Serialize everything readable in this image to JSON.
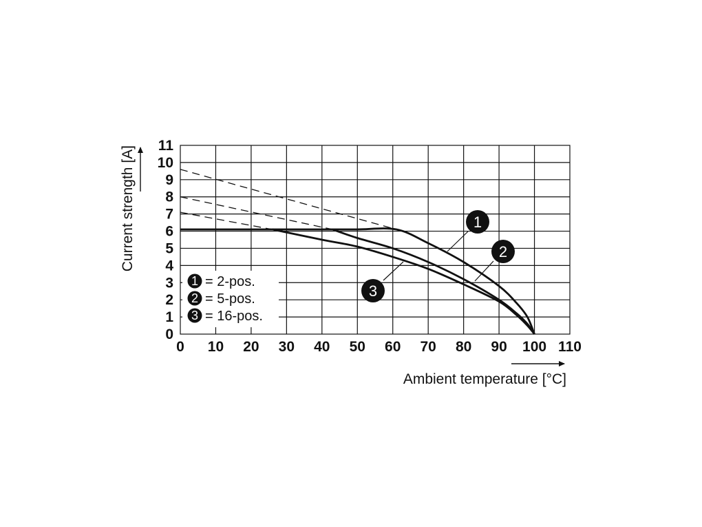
{
  "chart_data": {
    "type": "line",
    "xlabel": "Ambient temperature [°C]",
    "ylabel": "Current strength [A]",
    "xlim": [
      0,
      110
    ],
    "ylim": [
      0,
      11
    ],
    "x_ticks": [
      "0",
      "10",
      "20",
      "30",
      "40",
      "50",
      "60",
      "70",
      "80",
      "90",
      "100",
      "110"
    ],
    "y_ticks": [
      "0",
      "1",
      "2",
      "3",
      "4",
      "5",
      "6",
      "7",
      "8",
      "9",
      "10",
      "11"
    ],
    "grid": true,
    "legend_position": "bottom-left",
    "legend": [
      {
        "marker": "1",
        "text": "= 2-pos."
      },
      {
        "marker": "2",
        "text": "= 5-pos."
      },
      {
        "marker": "3",
        "text": "= 16-pos."
      }
    ],
    "series": [
      {
        "marker": "1",
        "name": "2-pos.",
        "dashed": {
          "x": [
            0,
            61
          ],
          "y": [
            9.6,
            6.1
          ]
        },
        "solid": {
          "x": [
            0,
            10,
            20,
            30,
            40,
            50,
            61,
            70,
            80,
            90,
            95,
            98,
            100
          ],
          "y": [
            6.1,
            6.1,
            6.1,
            6.1,
            6.1,
            6.1,
            6.1,
            5.3,
            4.2,
            2.8,
            1.8,
            1.0,
            0
          ]
        }
      },
      {
        "marker": "2",
        "name": "5-pos.",
        "dashed": {
          "x": [
            0,
            43
          ],
          "y": [
            8.0,
            6.1
          ]
        },
        "solid": {
          "x": [
            43,
            50,
            60,
            70,
            80,
            90,
            95,
            98,
            100
          ],
          "y": [
            6.1,
            5.6,
            5.0,
            4.2,
            3.2,
            2.0,
            1.2,
            0.6,
            0
          ]
        }
      },
      {
        "marker": "3",
        "name": "16-pos.",
        "dashed": {
          "x": [
            0,
            26
          ],
          "y": [
            7.1,
            6.1
          ]
        },
        "solid": {
          "x": [
            26,
            40,
            50,
            60,
            70,
            80,
            90,
            95,
            98,
            100
          ],
          "y": [
            6.1,
            5.5,
            5.1,
            4.5,
            3.8,
            2.9,
            1.9,
            1.1,
            0.5,
            0
          ]
        }
      }
    ]
  }
}
